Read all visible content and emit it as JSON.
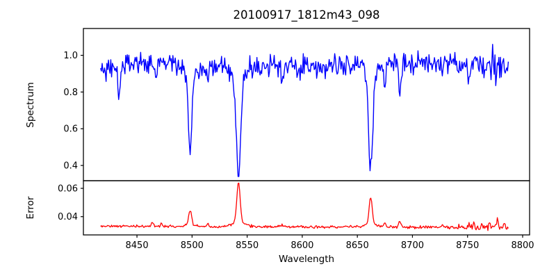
{
  "chart_data": {
    "type": "line",
    "title": "20100917_1812m43_098",
    "xlabel": "Wavelength",
    "xlim": [
      8401.4,
      8806.3
    ],
    "x_data_range": [
      8417,
      8787
    ],
    "x_tick_values": [
      8450,
      8500,
      8550,
      8600,
      8650,
      8700,
      8750,
      8800
    ],
    "x_tick_labels": [
      "8450",
      "8500",
      "8550",
      "8600",
      "8650",
      "8700",
      "8750",
      "8800"
    ],
    "grid": false,
    "legend": "none",
    "panels": [
      {
        "name": "spectrum",
        "ylabel": "Spectrum",
        "ylim": [
          0.317,
          1.146
        ],
        "y_tick_values": [
          0.4,
          0.6,
          0.8,
          1.0
        ],
        "y_tick_labels": [
          "0.4",
          "0.6",
          "0.8",
          "1.0"
        ],
        "series": {
          "name": "spectrum-flux",
          "color": "#0000ff",
          "n_points": 520,
          "continuum": 0.952,
          "noise_sigma": 0.03,
          "edge_dip": 0.05,
          "edge_scale": 10,
          "noise_boosts": [
            {
              "from": 8752,
              "factor": 1.5
            }
          ],
          "value_floor": 0.34,
          "absorption_lines": [
            {
              "center": 8434.0,
              "depth": 0.17,
              "width": 1.1
            },
            {
              "center": 8468.0,
              "depth": 0.07,
              "width": 0.9
            },
            {
              "center": 8498.3,
              "depth": 0.42,
              "width": 1.5,
              "wing_depth": 0.05,
              "wing_width": 6
            },
            {
              "center": 8514.0,
              "depth": 0.08,
              "width": 0.9
            },
            {
              "center": 8542.1,
              "depth": 0.54,
              "width": 2.0,
              "wing_depth": 0.06,
              "wing_width": 8
            },
            {
              "center": 8582.0,
              "depth": 0.07,
              "width": 0.9
            },
            {
              "center": 8598.0,
              "depth": 0.055,
              "width": 0.8
            },
            {
              "center": 8621.0,
              "depth": 0.05,
              "width": 0.8
            },
            {
              "center": 8662.1,
              "depth": 0.52,
              "width": 1.8,
              "wing_depth": 0.055,
              "wing_width": 7
            },
            {
              "center": 8675.0,
              "depth": 0.12,
              "width": 0.9
            },
            {
              "center": 8688.6,
              "depth": 0.18,
              "width": 1.1
            },
            {
              "center": 8727.0,
              "depth": 0.08,
              "width": 0.9
            },
            {
              "center": 8751.0,
              "depth": 0.1,
              "width": 0.9
            }
          ]
        }
      },
      {
        "name": "error",
        "ylabel": "Error",
        "ylim": [
          0.0271,
          0.0654
        ],
        "y_tick_values": [
          0.04,
          0.06
        ],
        "y_tick_labels": [
          "0.04",
          "0.06"
        ],
        "series": {
          "name": "error-array",
          "color": "#ff0000",
          "n_points": 520,
          "baseline": 0.0332,
          "baseline_drop_total": 0.0008,
          "noise_sigma": 0.00045,
          "noise_boosts": [
            {
              "from": 8695,
              "factor": 1.4
            },
            {
              "from": 8742,
              "factor": 2.2
            }
          ],
          "value_ceiling": 0.0648,
          "peaks": [
            {
              "center": 8464.0,
              "height": 0.0026,
              "width": 1.2
            },
            {
              "center": 8472.0,
              "height": 0.0016,
              "width": 1.0
            },
            {
              "center": 8498.3,
              "height": 0.01,
              "width": 1.3,
              "wing_height": 0.001,
              "wing_width": 5
            },
            {
              "center": 8514.0,
              "height": 0.0016,
              "width": 1.0
            },
            {
              "center": 8542.1,
              "height": 0.0285,
              "width": 1.5,
              "wing_height": 0.0028,
              "wing_width": 6
            },
            {
              "center": 8582.0,
              "height": 0.0014,
              "width": 1.0
            },
            {
              "center": 8662.1,
              "height": 0.019,
              "width": 1.4,
              "wing_height": 0.002,
              "wing_width": 6
            },
            {
              "center": 8675.0,
              "height": 0.0024,
              "width": 0.9
            },
            {
              "center": 8688.6,
              "height": 0.004,
              "width": 1.0
            },
            {
              "center": 8727.0,
              "height": 0.0014,
              "width": 0.9
            },
            {
              "center": 8751.0,
              "height": 0.002,
              "width": 0.9
            },
            {
              "center": 8756.0,
              "height": 0.0038,
              "width": 0.7
            },
            {
              "center": 8763.0,
              "height": 0.0032,
              "width": 0.7
            },
            {
              "center": 8770.0,
              "height": 0.0028,
              "width": 0.6
            },
            {
              "center": 8777.0,
              "height": 0.0052,
              "width": 0.7
            },
            {
              "center": 8783.0,
              "height": 0.0028,
              "width": 0.6
            }
          ]
        }
      }
    ]
  }
}
